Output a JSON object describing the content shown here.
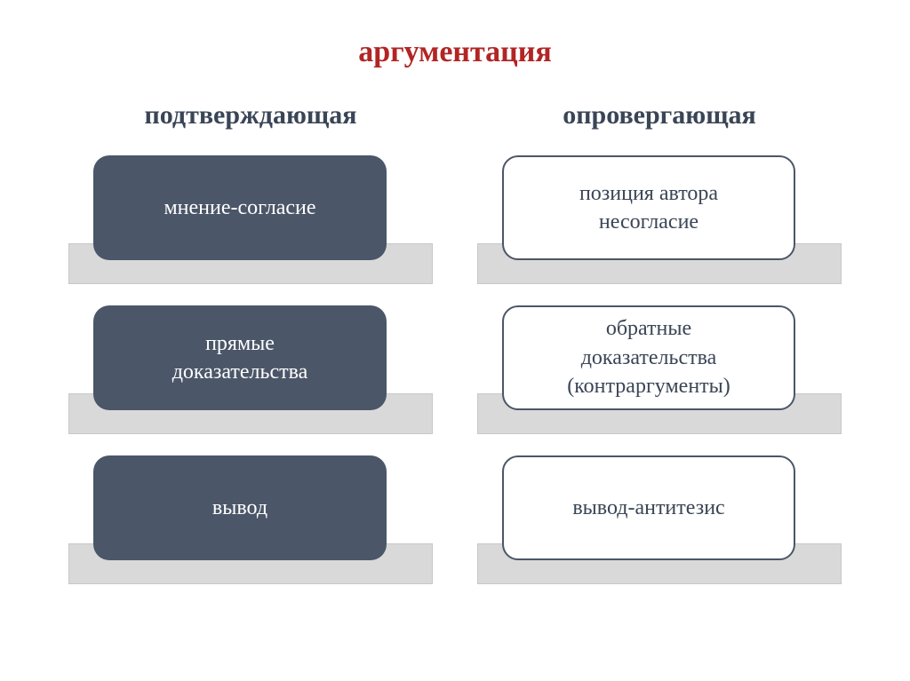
{
  "diagram": {
    "type": "infographic",
    "title": "аргументация",
    "title_color": "#b22525",
    "title_fontsize": 34,
    "subtitle_color": "#3a4556",
    "subtitle_fontsize": 30,
    "box_fontsize": 24,
    "box_border_radius": 18,
    "base_color": "#d9d9d9",
    "base_border_color": "#c8c8c8",
    "background_color": "#ffffff",
    "columns": [
      {
        "subtitle": "подтверждающая",
        "box_bg": "#4b5668",
        "box_text_color": "#ffffff",
        "box_style": "dark",
        "items": [
          {
            "lines": [
              "мнение-согласие"
            ]
          },
          {
            "lines": [
              "прямые",
              "доказательства"
            ]
          },
          {
            "lines": [
              "вывод"
            ]
          }
        ]
      },
      {
        "subtitle": "опровергающая",
        "box_bg": "#ffffff",
        "box_text_color": "#3a4556",
        "box_border_color": "#4b5668",
        "box_style": "light",
        "items": [
          {
            "lines": [
              "позиция автора",
              "несогласие"
            ]
          },
          {
            "lines": [
              "обратные",
              "доказательства",
              "(контраргументы)"
            ]
          },
          {
            "lines": [
              "вывод-антитезис"
            ]
          }
        ]
      }
    ]
  }
}
